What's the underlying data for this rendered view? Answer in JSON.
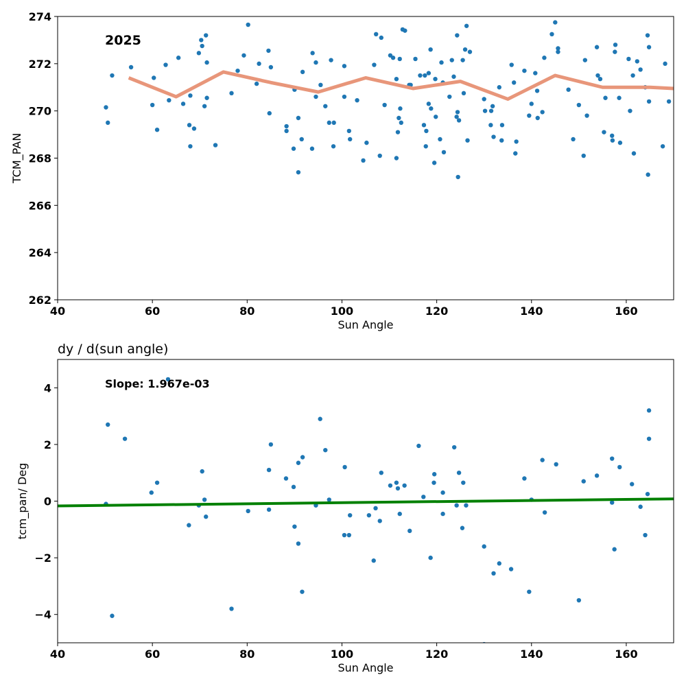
{
  "chart_data": [
    {
      "type": "scatter",
      "title": "",
      "annotation": "2025",
      "xlabel": "Sun Angle",
      "ylabel": "TCM_PAN",
      "xlim": [
        40,
        170
      ],
      "ylim": [
        262,
        274
      ],
      "xticks": [
        "40",
        "60",
        "80",
        "100",
        "120",
        "140",
        "160"
      ],
      "yticks": [
        "262",
        "264",
        "266",
        "268",
        "270",
        "272",
        "274"
      ],
      "grid": false,
      "colors": {
        "points": "#1f77b4",
        "trend": "#e8967a"
      },
      "series": [
        {
          "kind": "scatter",
          "points": [
            [
              50.2,
              270.15
            ],
            [
              50.6,
              269.5
            ],
            [
              51.5,
              271.5
            ],
            [
              55.5,
              271.85
            ],
            [
              60,
              270.25
            ],
            [
              60.3,
              271.4
            ],
            [
              61,
              269.2
            ],
            [
              62.8,
              271.95
            ],
            [
              63.5,
              270.45
            ],
            [
              65.5,
              272.25
            ],
            [
              66.5,
              270.3
            ],
            [
              67.8,
              269.4
            ],
            [
              68,
              268.5
            ],
            [
              68,
              270.65
            ],
            [
              68.8,
              269.25
            ],
            [
              69.8,
              272.45
            ],
            [
              70.3,
              273.0
            ],
            [
              70.5,
              272.75
            ],
            [
              71,
              270.2
            ],
            [
              71.3,
              273.2
            ],
            [
              71.5,
              272.05
            ],
            [
              71.5,
              270.55
            ],
            [
              73.3,
              268.55
            ],
            [
              76.7,
              270.75
            ],
            [
              78,
              271.7
            ],
            [
              79.3,
              272.35
            ],
            [
              80.2,
              273.65
            ],
            [
              82,
              271.15
            ],
            [
              82.5,
              272.0
            ],
            [
              84.5,
              272.55
            ],
            [
              84.7,
              269.9
            ],
            [
              85,
              271.85
            ],
            [
              88.3,
              269.35
            ],
            [
              88.3,
              269.15
            ],
            [
              89.8,
              268.4
            ],
            [
              90,
              270.9
            ],
            [
              90.8,
              267.4
            ],
            [
              90.8,
              269.7
            ],
            [
              91.5,
              268.8
            ],
            [
              91.7,
              271.65
            ],
            [
              93.7,
              268.4
            ],
            [
              93.8,
              272.45
            ],
            [
              94.5,
              270.6
            ],
            [
              94.5,
              272.05
            ],
            [
              95.5,
              271.1
            ],
            [
              96.5,
              270.2
            ],
            [
              97.3,
              269.5
            ],
            [
              97.7,
              272.15
            ],
            [
              98.2,
              268.5
            ],
            [
              98.3,
              269.5
            ],
            [
              100.5,
              270.6
            ],
            [
              100.5,
              271.9
            ],
            [
              101.5,
              269.15
            ],
            [
              101.7,
              268.8
            ],
            [
              103.2,
              270.45
            ],
            [
              104.5,
              267.9
            ],
            [
              105.2,
              268.65
            ],
            [
              106.8,
              271.95
            ],
            [
              107.2,
              273.25
            ],
            [
              108,
              268.1
            ],
            [
              108.3,
              273.1
            ],
            [
              109,
              270.25
            ],
            [
              110.2,
              272.35
            ],
            [
              110.8,
              272.25
            ],
            [
              111.5,
              268.0
            ],
            [
              111.5,
              271.35
            ],
            [
              111.8,
              269.1
            ],
            [
              112,
              269.7
            ],
            [
              112.2,
              272.2
            ],
            [
              112.3,
              270.1
            ],
            [
              112.5,
              269.5
            ],
            [
              112.8,
              273.45
            ],
            [
              113.3,
              273.4
            ],
            [
              114.2,
              271.1
            ],
            [
              114.5,
              271.1
            ],
            [
              115.5,
              272.2
            ],
            [
              116.5,
              271.5
            ],
            [
              117.3,
              269.4
            ],
            [
              117.5,
              271.5
            ],
            [
              117.7,
              268.5
            ],
            [
              117.8,
              269.15
            ],
            [
              118.3,
              270.3
            ],
            [
              118.3,
              271.6
            ],
            [
              118.7,
              272.6
            ],
            [
              118.8,
              270.1
            ],
            [
              119.5,
              267.8
            ],
            [
              119.7,
              271.35
            ],
            [
              119.8,
              269.75
            ],
            [
              120.7,
              268.8
            ],
            [
              121,
              272.05
            ],
            [
              121.3,
              271.2
            ],
            [
              121.5,
              268.25
            ],
            [
              122.7,
              270.6
            ],
            [
              123.2,
              272.15
            ],
            [
              123.6,
              271.45
            ],
            [
              124.2,
              269.75
            ],
            [
              124.3,
              273.2
            ],
            [
              124.4,
              269.95
            ],
            [
              124.5,
              267.2
            ],
            [
              124.7,
              269.6
            ],
            [
              125.5,
              272.15
            ],
            [
              125.7,
              270.75
            ],
            [
              126,
              272.6
            ],
            [
              126.3,
              273.6
            ],
            [
              126.5,
              268.75
            ],
            [
              127,
              272.5
            ],
            [
              130,
              270.5
            ],
            [
              130.2,
              270.0
            ],
            [
              131.4,
              269.4
            ],
            [
              131.5,
              270.0
            ],
            [
              131.8,
              270.2
            ],
            [
              132,
              268.9
            ],
            [
              133.2,
              271.0
            ],
            [
              133.7,
              268.75
            ],
            [
              133.8,
              269.4
            ],
            [
              135.8,
              271.95
            ],
            [
              136.3,
              271.2
            ],
            [
              136.6,
              268.2
            ],
            [
              136.8,
              268.7
            ],
            [
              138.5,
              271.7
            ],
            [
              139.5,
              269.8
            ],
            [
              140,
              270.3
            ],
            [
              140.8,
              271.6
            ],
            [
              141.2,
              270.85
            ],
            [
              141.3,
              269.7
            ],
            [
              142.3,
              269.95
            ],
            [
              142.7,
              272.25
            ],
            [
              144.3,
              273.25
            ],
            [
              145,
              273.75
            ],
            [
              145.6,
              272.65
            ],
            [
              145.6,
              272.5
            ],
            [
              147.8,
              270.9
            ],
            [
              148.8,
              268.8
            ],
            [
              150,
              270.25
            ],
            [
              151,
              268.1
            ],
            [
              151.3,
              272.15
            ],
            [
              151.7,
              269.8
            ],
            [
              153.8,
              272.7
            ],
            [
              154,
              271.5
            ],
            [
              154.5,
              271.35
            ],
            [
              155.3,
              269.1
            ],
            [
              155.6,
              270.55
            ],
            [
              157,
              268.95
            ],
            [
              157.1,
              268.75
            ],
            [
              157.6,
              272.5
            ],
            [
              157.7,
              272.8
            ],
            [
              158.5,
              270.55
            ],
            [
              158.7,
              268.65
            ],
            [
              160.5,
              272.2
            ],
            [
              160.8,
              270.0
            ],
            [
              161.4,
              271.5
            ],
            [
              161.6,
              268.2
            ],
            [
              162.3,
              272.1
            ],
            [
              163,
              271.75
            ],
            [
              164,
              271.0
            ],
            [
              164.5,
              273.2
            ],
            [
              164.6,
              267.3
            ],
            [
              164.8,
              270.4
            ],
            [
              164.8,
              272.7
            ],
            [
              167.7,
              268.5
            ],
            [
              168.2,
              272.0
            ],
            [
              169,
              270.4
            ]
          ]
        },
        {
          "kind": "line",
          "points": [
            [
              55,
              271.4
            ],
            [
              65,
              270.6
            ],
            [
              75,
              271.65
            ],
            [
              85,
              271.2
            ],
            [
              95,
              270.8
            ],
            [
              105,
              271.4
            ],
            [
              115,
              270.95
            ],
            [
              125,
              271.25
            ],
            [
              135,
              270.5
            ],
            [
              145,
              271.5
            ],
            [
              155,
              271.0
            ],
            [
              165,
              271.0
            ],
            [
              170,
              270.95
            ]
          ]
        }
      ]
    },
    {
      "type": "scatter",
      "title": "dy / d(sun angle)",
      "annotation": "Slope: 1.967e-03",
      "xlabel": "Sun Angle",
      "ylabel": "tcm_pan/ Deg",
      "xlim": [
        40,
        170
      ],
      "ylim": [
        -5,
        5
      ],
      "xticks": [
        "40",
        "60",
        "80",
        "100",
        "120",
        "140",
        "160"
      ],
      "yticks": [
        "−4",
        "−2",
        "0",
        "2",
        "4"
      ],
      "grid": false,
      "colors": {
        "points": "#1f77b4",
        "fit": "#008000"
      },
      "series": [
        {
          "kind": "scatter",
          "points": [
            [
              50.2,
              -0.1
            ],
            [
              50.6,
              2.7
            ],
            [
              51.5,
              -4.05
            ],
            [
              54.2,
              2.2
            ],
            [
              59.8,
              0.3
            ],
            [
              61,
              0.65
            ],
            [
              63.3,
              4.3
            ],
            [
              67.7,
              -0.85
            ],
            [
              69.8,
              -0.15
            ],
            [
              70.5,
              1.05
            ],
            [
              71,
              0.05
            ],
            [
              71.3,
              -0.55
            ],
            [
              76.7,
              -3.8
            ],
            [
              80.2,
              -0.35
            ],
            [
              84.6,
              -0.3
            ],
            [
              84.6,
              1.1
            ],
            [
              85,
              2.0
            ],
            [
              88.2,
              0.8
            ],
            [
              89.8,
              0.5
            ],
            [
              90,
              -0.9
            ],
            [
              90.8,
              -1.5
            ],
            [
              90.8,
              1.35
            ],
            [
              91.6,
              -3.2
            ],
            [
              91.7,
              1.55
            ],
            [
              94.5,
              -0.15
            ],
            [
              95.4,
              2.9
            ],
            [
              96.5,
              1.8
            ],
            [
              97.3,
              0.05
            ],
            [
              100.5,
              -1.2
            ],
            [
              100.6,
              1.2
            ],
            [
              101.5,
              -1.2
            ],
            [
              101.7,
              -0.5
            ],
            [
              105.7,
              -0.5
            ],
            [
              106.7,
              -2.1
            ],
            [
              107.1,
              -0.25
            ],
            [
              108,
              -0.7
            ],
            [
              108.3,
              1.0
            ],
            [
              110.2,
              0.55
            ],
            [
              111.5,
              0.65
            ],
            [
              111.8,
              0.45
            ],
            [
              112.2,
              -0.45
            ],
            [
              113.2,
              0.55
            ],
            [
              114.3,
              -1.05
            ],
            [
              116.2,
              1.95
            ],
            [
              117.2,
              0.15
            ],
            [
              118.7,
              -2.0
            ],
            [
              119.4,
              0.65
            ],
            [
              119.5,
              0.95
            ],
            [
              121.3,
              -0.45
            ],
            [
              121.3,
              0.3
            ],
            [
              123.7,
              1.9
            ],
            [
              124.2,
              -0.15
            ],
            [
              124.7,
              1.0
            ],
            [
              125.4,
              -0.95
            ],
            [
              125.6,
              0.65
            ],
            [
              126.2,
              -0.15
            ],
            [
              130,
              -1.6
            ],
            [
              130,
              -5.05
            ],
            [
              132,
              -2.55
            ],
            [
              133.2,
              -2.2
            ],
            [
              135.7,
              -2.4
            ],
            [
              138.5,
              0.8
            ],
            [
              139.5,
              -3.2
            ],
            [
              140,
              0.05
            ],
            [
              142.3,
              1.45
            ],
            [
              142.8,
              -0.4
            ],
            [
              145.2,
              1.3
            ],
            [
              150,
              -3.5
            ],
            [
              151,
              0.7
            ],
            [
              153.8,
              0.9
            ],
            [
              157,
              1.5
            ],
            [
              157,
              -0.05
            ],
            [
              157.5,
              -1.7
            ],
            [
              158.6,
              1.2
            ],
            [
              161.2,
              0.6
            ],
            [
              163,
              -0.2
            ],
            [
              164,
              -1.2
            ],
            [
              164.5,
              0.25
            ],
            [
              164.8,
              3.2
            ],
            [
              164.8,
              2.2
            ]
          ]
        },
        {
          "kind": "line",
          "points": [
            [
              40,
              -0.17
            ],
            [
              170,
              0.08
            ]
          ]
        }
      ]
    }
  ]
}
